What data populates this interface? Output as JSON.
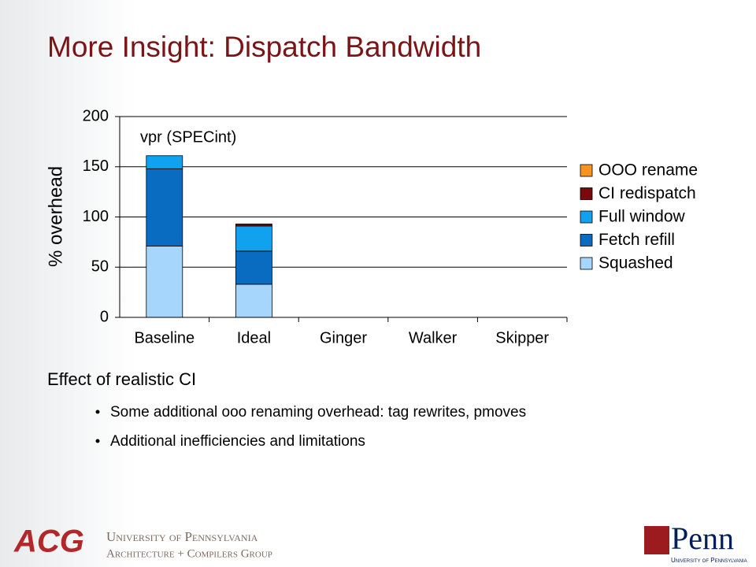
{
  "title": "More Insight: Dispatch Bandwidth",
  "chart_data": {
    "type": "stacked_bar",
    "annotation": "vpr (SPECint)",
    "y_label": "% overhead",
    "categories": [
      "Baseline",
      "Ideal",
      "Ginger",
      "Walker",
      "Skipper"
    ],
    "series": [
      {
        "name": "Squashed",
        "color": "#a6d6fb",
        "values": [
          71,
          33,
          null,
          null,
          null
        ]
      },
      {
        "name": "Fetch refill",
        "color": "#0a6cc0",
        "values": [
          77,
          33,
          null,
          null,
          null
        ]
      },
      {
        "name": "Full window",
        "color": "#10a2ee",
        "values": [
          13,
          25,
          null,
          null,
          null
        ]
      },
      {
        "name": "CI redispatch",
        "color": "#7a0a0a",
        "values": [
          0,
          2,
          null,
          null,
          null
        ]
      },
      {
        "name": "OOO rename",
        "color": "#f7941d",
        "values": [
          0,
          0,
          null,
          null,
          null
        ]
      }
    ],
    "ylim": [
      0,
      200
    ],
    "yticks": [
      0,
      50,
      100,
      150,
      200
    ],
    "grid": true,
    "legend": "right"
  },
  "bullets": {
    "heading": "Effect of realistic CI",
    "items": [
      "Some additional ooo renaming overhead: tag rewrites, pmoves",
      "Additional inefficiencies and limitations"
    ]
  },
  "footer": {
    "logo": "ACG",
    "university": "University of Pennsylvania",
    "group": "Architecture + Compilers Group",
    "penn": "Penn",
    "penn_sub": "University of Pennsylvania"
  }
}
